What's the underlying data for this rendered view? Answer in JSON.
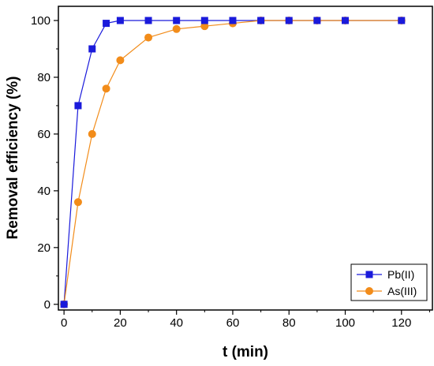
{
  "chart_data": {
    "type": "line",
    "xlabel": "t (min)",
    "ylabel": "Removal efficiency (%)",
    "xlim": [
      -2,
      131
    ],
    "ylim": [
      -2,
      105
    ],
    "xticks": [
      0,
      20,
      40,
      60,
      80,
      100,
      120
    ],
    "yticks": [
      0,
      20,
      40,
      60,
      80,
      100
    ],
    "xminor": [
      10,
      30,
      50,
      70,
      90,
      110,
      130
    ],
    "yminor": [
      10,
      30,
      50,
      70,
      90
    ],
    "grid": false,
    "legend_position": "bottom-right",
    "series": [
      {
        "name": "Pb(II)",
        "color": "#1a1adb",
        "marker": "square",
        "x": [
          0,
          5,
          10,
          15,
          20,
          30,
          40,
          50,
          60,
          70,
          80,
          90,
          100,
          120
        ],
        "y": [
          0,
          70,
          90,
          99,
          100,
          100,
          100,
          100,
          100,
          100,
          100,
          100,
          100,
          100
        ]
      },
      {
        "name": "As(III)",
        "color": "#f28c1a",
        "marker": "circle",
        "x": [
          0,
          5,
          10,
          15,
          20,
          30,
          40,
          50,
          60,
          70,
          80,
          90,
          100,
          120
        ],
        "y": [
          0,
          36,
          60,
          76,
          86,
          94,
          97,
          98,
          99,
          100,
          100,
          100,
          100,
          100
        ]
      }
    ]
  }
}
